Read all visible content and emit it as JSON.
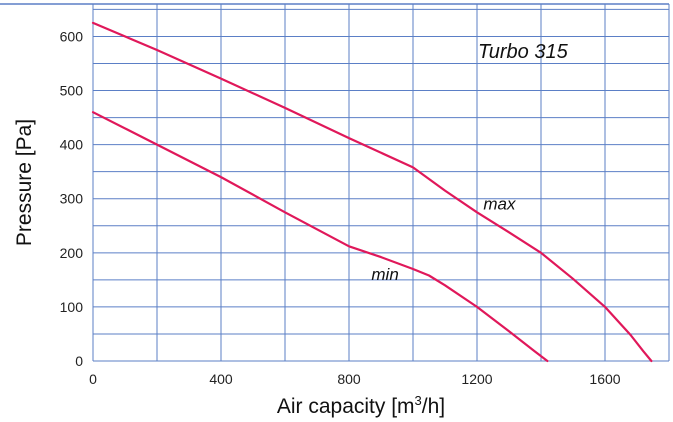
{
  "chart_data": {
    "type": "line",
    "title": "Turbo 315",
    "xlabel": "Air capacity [m",
    "xlabel_sup": "3",
    "xlabel_suffix": "/h]",
    "ylabel": "Pressure [Pa]",
    "xlim": [
      0,
      1800
    ],
    "ylim": [
      0,
      660
    ],
    "x_ticks": [
      0,
      400,
      800,
      1200,
      1600
    ],
    "y_ticks": [
      0,
      100,
      200,
      300,
      400,
      500,
      600
    ],
    "x_grid_step": 200,
    "y_grid_step": 50,
    "grid": true,
    "legend": "none",
    "series": [
      {
        "name": "max",
        "color": "#e0185a",
        "label_at": [
          1220,
          280
        ],
        "points": [
          [
            0,
            625
          ],
          [
            200,
            575
          ],
          [
            400,
            522
          ],
          [
            600,
            468
          ],
          [
            800,
            412
          ],
          [
            1000,
            358
          ],
          [
            1100,
            315
          ],
          [
            1200,
            275
          ],
          [
            1300,
            238
          ],
          [
            1400,
            200
          ],
          [
            1500,
            152
          ],
          [
            1600,
            100
          ],
          [
            1680,
            48
          ],
          [
            1720,
            18
          ],
          [
            1745,
            0
          ]
        ]
      },
      {
        "name": "min",
        "color": "#e0185a",
        "label_at": [
          870,
          150
        ],
        "points": [
          [
            0,
            460
          ],
          [
            200,
            400
          ],
          [
            400,
            340
          ],
          [
            600,
            275
          ],
          [
            800,
            212
          ],
          [
            900,
            192
          ],
          [
            1000,
            170
          ],
          [
            1050,
            158
          ],
          [
            1100,
            140
          ],
          [
            1200,
            100
          ],
          [
            1300,
            55
          ],
          [
            1380,
            18
          ],
          [
            1420,
            0
          ]
        ]
      }
    ]
  }
}
